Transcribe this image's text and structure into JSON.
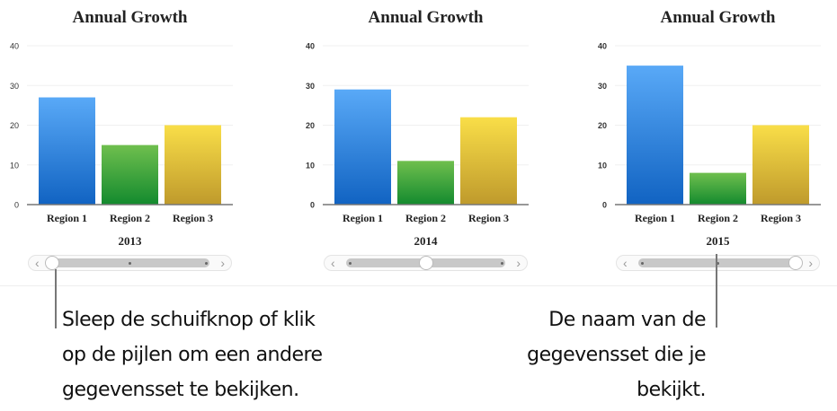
{
  "chart_data": [
    {
      "type": "bar",
      "title": "Annual Growth",
      "dataset_label": "2013",
      "categories": [
        "Region 1",
        "Region 2",
        "Region 3"
      ],
      "values": [
        27,
        15,
        20
      ],
      "ylim": [
        0,
        40
      ],
      "yticks": [
        0,
        10,
        20,
        30,
        40
      ],
      "grid": true,
      "colors": [
        "#2f80e0",
        "#3fa63b",
        "#e2c13a"
      ],
      "slider_index": 0
    },
    {
      "type": "bar",
      "title": "Annual Growth",
      "dataset_label": "2014",
      "categories": [
        "Region 1",
        "Region 2",
        "Region 3"
      ],
      "values": [
        29,
        11,
        22
      ],
      "ylim": [
        0,
        40
      ],
      "yticks": [
        0,
        10,
        20,
        30,
        40
      ],
      "grid": true,
      "colors": [
        "#2f80e0",
        "#3fa63b",
        "#e2c13a"
      ],
      "slider_index": 1
    },
    {
      "type": "bar",
      "title": "Annual Growth",
      "dataset_label": "2015",
      "categories": [
        "Region 1",
        "Region 2",
        "Region 3"
      ],
      "values": [
        35,
        8,
        20
      ],
      "ylim": [
        0,
        40
      ],
      "yticks": [
        0,
        10,
        20,
        30,
        40
      ],
      "grid": true,
      "colors": [
        "#2f80e0",
        "#3fa63b",
        "#e2c13a"
      ],
      "slider_index": 2
    }
  ],
  "slider": {
    "prev_icon": "chevron-left-icon",
    "next_icon": "chevron-right-icon",
    "positions": 3
  },
  "callouts": {
    "left": [
      "Sleep de schuifknop of klik",
      "op de pijlen om een andere",
      "gegevensset te bekijken."
    ],
    "right": [
      "De naam van de",
      "gegevensset die je",
      "bekijkt."
    ]
  }
}
